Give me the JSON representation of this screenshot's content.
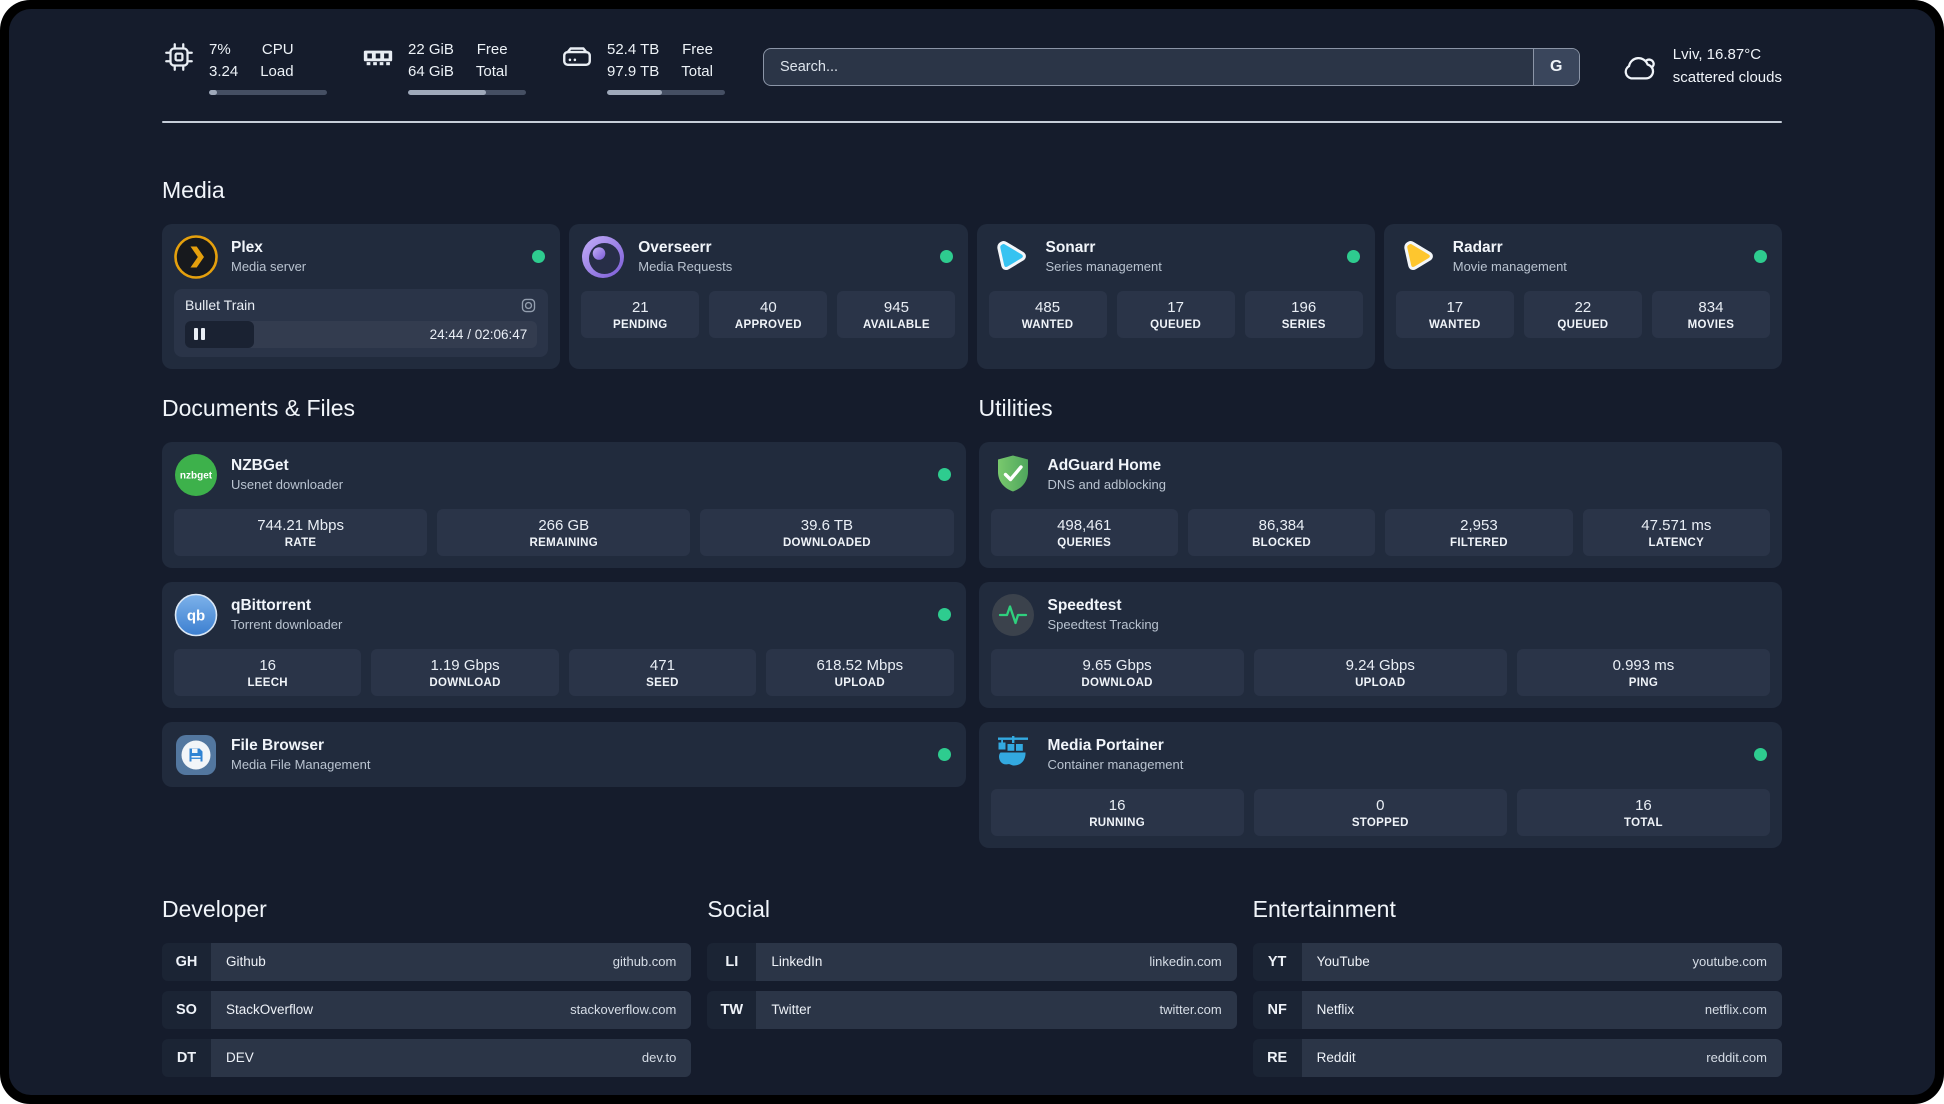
{
  "colors": {
    "status_online": "#2ecc8f",
    "panel_background": "#151c2c",
    "card_background": "#212b3d",
    "plex_accent": "#e5a00d",
    "sonarr_accent": "#36c3f1",
    "radarr_accent": "#fec62e",
    "adguard_accent": "#5fb36a",
    "portainer_accent": "#33a9e0"
  },
  "icons": {
    "cpu": "chip-icon",
    "memory": "ram-stick-icon",
    "disk": "drive-icon",
    "weather": "cloud-icon",
    "plex": "chevron-logo",
    "overseerr": "eye-logo",
    "sonarr": "play-triangle-logo",
    "radarr": "play-triangle-logo",
    "nzbget": "nzbget-wordmark-logo",
    "qbittorrent": "qb-logo",
    "filebrowser": "floppy-disk-logo",
    "adguard": "shield-check-logo",
    "speedtest": "pulse-line-logo",
    "portainer": "docker-crane-logo",
    "settings": "gear-icon",
    "pause": "pause-bars-icon",
    "status": "green-dot"
  },
  "header": {
    "metrics": [
      {
        "name": "cpu",
        "values": [
          "7%",
          "3.24"
        ],
        "labels": [
          "CPU",
          "Load"
        ],
        "progress_pct": 7
      },
      {
        "name": "memory",
        "values": [
          "22 GiB",
          "64 GiB"
        ],
        "labels": [
          "Free",
          "Total"
        ],
        "progress_pct": 66
      },
      {
        "name": "disk",
        "values": [
          "52.4 TB",
          "97.9 TB"
        ],
        "labels": [
          "Free",
          "Total"
        ],
        "progress_pct": 47
      }
    ],
    "search": {
      "placeholder": "Search...",
      "engine": "G"
    },
    "weather": {
      "location": "Lviv, 16.87°C",
      "condition": "scattered clouds"
    }
  },
  "sections": {
    "media": {
      "title": "Media",
      "cards": {
        "plex": {
          "name": "Plex",
          "subtitle": "Media server",
          "online": true,
          "now_playing": {
            "title": "Bullet Train",
            "time": "24:44 / 02:06:47",
            "progress_pct": 19.5,
            "state": "paused"
          }
        },
        "overseerr": {
          "name": "Overseerr",
          "subtitle": "Media Requests",
          "online": true,
          "stats": [
            {
              "value": "21",
              "label": "PENDING"
            },
            {
              "value": "40",
              "label": "APPROVED"
            },
            {
              "value": "945",
              "label": "AVAILABLE"
            }
          ]
        },
        "sonarr": {
          "name": "Sonarr",
          "subtitle": "Series management",
          "online": true,
          "stats": [
            {
              "value": "485",
              "label": "WANTED"
            },
            {
              "value": "17",
              "label": "QUEUED"
            },
            {
              "value": "196",
              "label": "SERIES"
            }
          ]
        },
        "radarr": {
          "name": "Radarr",
          "subtitle": "Movie management",
          "online": true,
          "stats": [
            {
              "value": "17",
              "label": "WANTED"
            },
            {
              "value": "22",
              "label": "QUEUED"
            },
            {
              "value": "834",
              "label": "MOVIES"
            }
          ]
        }
      }
    },
    "documents": {
      "title": "Documents & Files",
      "cards": {
        "nzbget": {
          "name": "NZBGet",
          "subtitle": "Usenet downloader",
          "online": true,
          "logo_text": "nzbget",
          "stats": [
            {
              "value": "744.21 Mbps",
              "label": "RATE"
            },
            {
              "value": "266 GB",
              "label": "REMAINING"
            },
            {
              "value": "39.6 TB",
              "label": "DOWNLOADED"
            }
          ]
        },
        "qbittorrent": {
          "name": "qBittorrent",
          "subtitle": "Torrent downloader",
          "online": true,
          "logo_text": "qb",
          "stats": [
            {
              "value": "16",
              "label": "LEECH"
            },
            {
              "value": "1.19 Gbps",
              "label": "DOWNLOAD"
            },
            {
              "value": "471",
              "label": "SEED"
            },
            {
              "value": "618.52 Mbps",
              "label": "UPLOAD"
            }
          ]
        },
        "filebrowser": {
          "name": "File Browser",
          "subtitle": "Media File Management",
          "online": true
        }
      }
    },
    "utilities": {
      "title": "Utilities",
      "cards": {
        "adguard": {
          "name": "AdGuard Home",
          "subtitle": "DNS and adblocking",
          "stats": [
            {
              "value": "498,461",
              "label": "QUERIES"
            },
            {
              "value": "86,384",
              "label": "BLOCKED"
            },
            {
              "value": "2,953",
              "label": "FILTERED"
            },
            {
              "value": "47.571 ms",
              "label": "LATENCY"
            }
          ]
        },
        "speedtest": {
          "name": "Speedtest",
          "subtitle": "Speedtest Tracking",
          "stats": [
            {
              "value": "9.65 Gbps",
              "label": "DOWNLOAD"
            },
            {
              "value": "9.24 Gbps",
              "label": "UPLOAD"
            },
            {
              "value": "0.993 ms",
              "label": "PING"
            }
          ]
        },
        "portainer": {
          "name": "Media Portainer",
          "subtitle": "Container management",
          "online": true,
          "stats": [
            {
              "value": "16",
              "label": "RUNNING"
            },
            {
              "value": "0",
              "label": "STOPPED"
            },
            {
              "value": "16",
              "label": "TOTAL"
            }
          ]
        }
      }
    },
    "developer": {
      "title": "Developer",
      "links": [
        {
          "abbr": "GH",
          "name": "Github",
          "url": "github.com"
        },
        {
          "abbr": "SO",
          "name": "StackOverflow",
          "url": "stackoverflow.com"
        },
        {
          "abbr": "DT",
          "name": "DEV",
          "url": "dev.to"
        }
      ]
    },
    "social": {
      "title": "Social",
      "links": [
        {
          "abbr": "LI",
          "name": "LinkedIn",
          "url": "linkedin.com"
        },
        {
          "abbr": "TW",
          "name": "Twitter",
          "url": "twitter.com"
        }
      ]
    },
    "entertainment": {
      "title": "Entertainment",
      "links": [
        {
          "abbr": "YT",
          "name": "YouTube",
          "url": "youtube.com"
        },
        {
          "abbr": "NF",
          "name": "Netflix",
          "url": "netflix.com"
        },
        {
          "abbr": "RE",
          "name": "Reddit",
          "url": "reddit.com"
        }
      ]
    }
  }
}
